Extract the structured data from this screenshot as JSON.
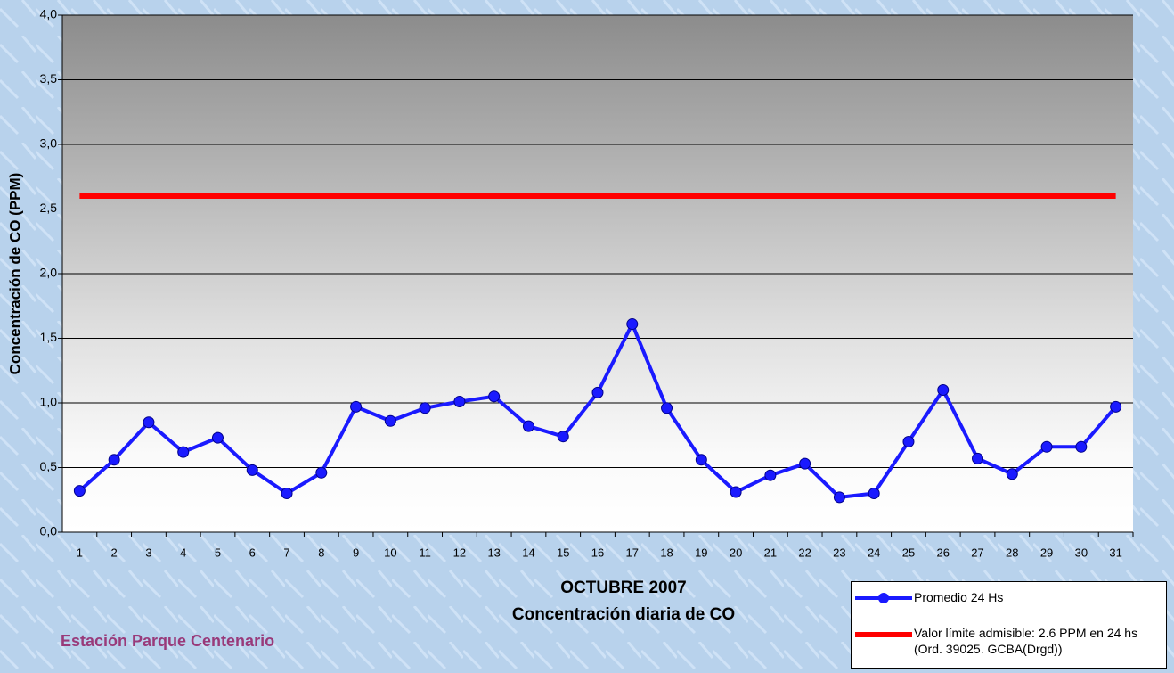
{
  "chart_data": {
    "type": "line",
    "title": "OCTUBRE 2007",
    "subtitle": "Concentración diaria de CO",
    "y_label": "Concentración de CO (PPM)",
    "annotation": "Estación Parque Centenario",
    "categories": [
      "1",
      "2",
      "3",
      "4",
      "5",
      "6",
      "7",
      "8",
      "9",
      "10",
      "11",
      "12",
      "13",
      "14",
      "15",
      "16",
      "17",
      "18",
      "19",
      "20",
      "21",
      "22",
      "23",
      "24",
      "25",
      "26",
      "27",
      "28",
      "29",
      "30",
      "31"
    ],
    "series": [
      {
        "name": "Promedio 24 Hs",
        "color": "#1a1aff",
        "marker": true,
        "values": [
          0.32,
          0.56,
          0.85,
          0.62,
          0.73,
          0.48,
          0.3,
          0.46,
          0.97,
          0.86,
          0.96,
          1.01,
          1.05,
          0.82,
          0.74,
          1.08,
          1.61,
          0.96,
          0.56,
          0.31,
          0.44,
          0.53,
          0.27,
          0.3,
          0.7,
          1.1,
          0.57,
          0.45,
          0.66,
          0.66,
          0.97
        ]
      },
      {
        "name": "Valor límite admisible: 2.6 PPM en 24 hs (Ord. 39025. GCBA(Drgd))",
        "color": "#ff0000",
        "marker": false,
        "values": [
          2.6,
          2.6,
          2.6,
          2.6,
          2.6,
          2.6,
          2.6,
          2.6,
          2.6,
          2.6,
          2.6,
          2.6,
          2.6,
          2.6,
          2.6,
          2.6,
          2.6,
          2.6,
          2.6,
          2.6,
          2.6,
          2.6,
          2.6,
          2.6,
          2.6,
          2.6,
          2.6,
          2.6,
          2.6,
          2.6,
          2.6
        ]
      }
    ],
    "ylim": [
      0,
      4
    ],
    "yticks": [
      {
        "value": 0,
        "label": "0,0"
      },
      {
        "value": 0.5,
        "label": "0,5"
      },
      {
        "value": 1,
        "label": "1,0"
      },
      {
        "value": 1.5,
        "label": "1,5"
      },
      {
        "value": 2,
        "label": "2,0"
      },
      {
        "value": 2.5,
        "label": "2,5"
      },
      {
        "value": 3,
        "label": "3,0"
      },
      {
        "value": 3.5,
        "label": "3,5"
      },
      {
        "value": 4,
        "label": "4,0"
      }
    ],
    "grid": true
  }
}
